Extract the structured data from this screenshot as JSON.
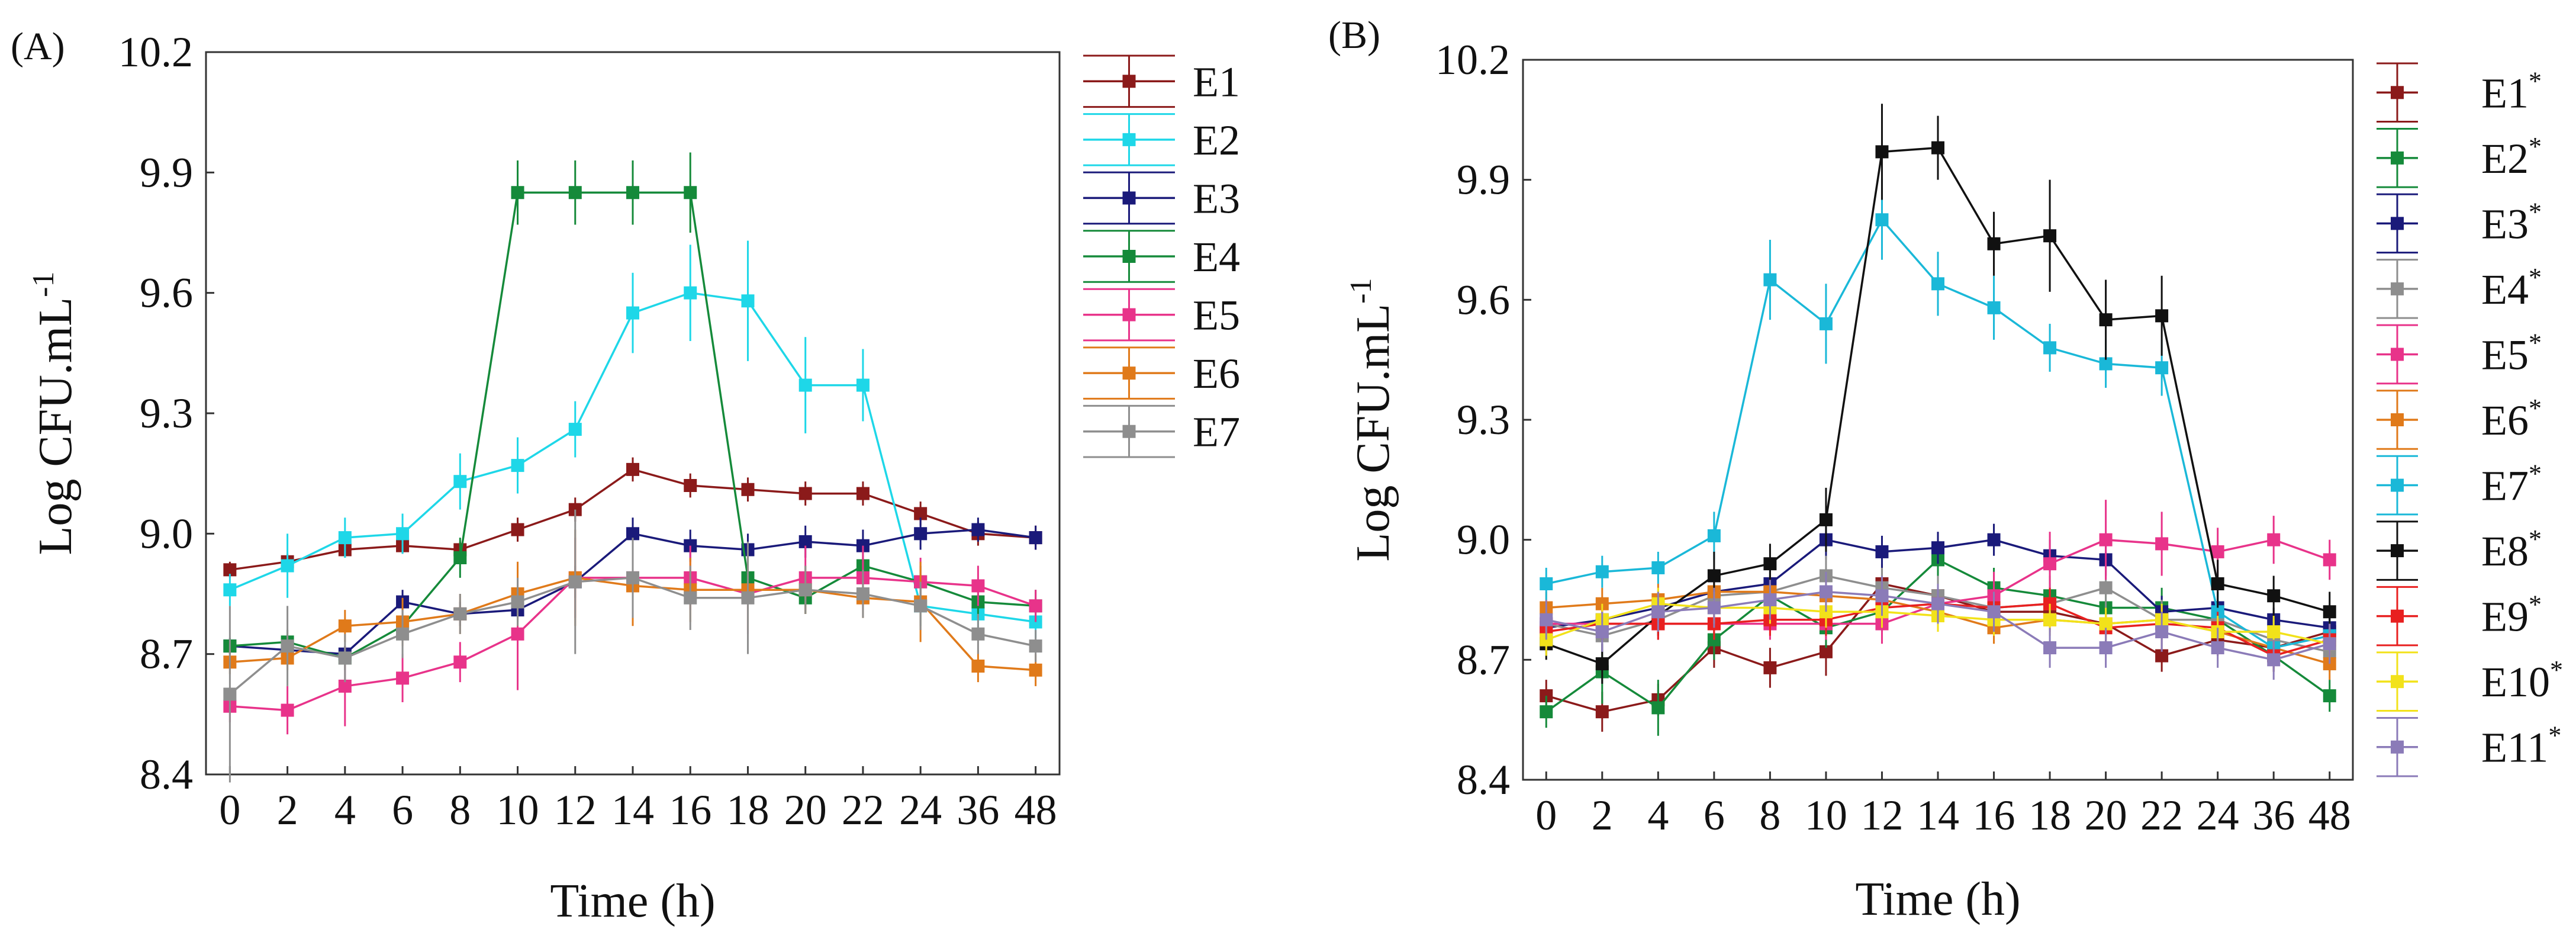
{
  "chart_data": [
    {
      "panel_label": "(A)",
      "type": "line",
      "xlabel": "Time (h)",
      "ylabel_main": "Log CFU.mL",
      "ylabel_sup": "-1",
      "ylim": [
        8.4,
        10.2
      ],
      "yticks": [
        "8.4",
        "8.7",
        "9.0",
        "9.3",
        "9.6",
        "9.9",
        "10.2"
      ],
      "categories": [
        "0",
        "2",
        "4",
        "6",
        "8",
        "10",
        "12",
        "14",
        "16",
        "18",
        "20",
        "22",
        "24",
        "36",
        "48"
      ],
      "legend_position": "right",
      "series": [
        {
          "name": "E1",
          "color": "#8B1A1A",
          "values": [
            8.91,
            8.93,
            8.96,
            8.97,
            8.96,
            9.01,
            9.06,
            9.16,
            9.12,
            9.11,
            9.1,
            9.1,
            9.05,
            9.0,
            8.99
          ],
          "err": [
            0.02,
            0.02,
            0.02,
            0.02,
            0.02,
            0.03,
            0.03,
            0.03,
            0.03,
            0.03,
            0.03,
            0.03,
            0.03,
            0.03,
            0.03
          ]
        },
        {
          "name": "E2",
          "color": "#1ED7E8",
          "values": [
            8.86,
            8.92,
            8.99,
            9.0,
            9.13,
            9.17,
            9.26,
            9.55,
            9.6,
            9.58,
            9.37,
            9.37,
            8.82,
            8.8,
            8.78
          ],
          "err": [
            0.04,
            0.08,
            0.05,
            0.05,
            0.07,
            0.07,
            0.07,
            0.1,
            0.12,
            0.15,
            0.12,
            0.09,
            0.05,
            0.04,
            0.04
          ]
        },
        {
          "name": "E3",
          "color": "#1A1A7A",
          "values": [
            8.72,
            8.71,
            8.7,
            8.83,
            8.8,
            8.81,
            8.88,
            9.0,
            8.97,
            8.96,
            8.98,
            8.97,
            9.0,
            9.01,
            8.99
          ],
          "err": [
            0.02,
            0.02,
            0.02,
            0.03,
            0.03,
            0.03,
            0.04,
            0.04,
            0.04,
            0.04,
            0.04,
            0.04,
            0.04,
            0.03,
            0.03
          ]
        },
        {
          "name": "E4",
          "color": "#158A3A",
          "values": [
            8.72,
            8.73,
            8.69,
            8.77,
            8.94,
            9.85,
            9.85,
            9.85,
            9.85,
            8.89,
            8.84,
            8.92,
            8.88,
            8.83,
            8.82
          ],
          "err": [
            0.02,
            0.03,
            0.03,
            0.03,
            0.05,
            0.08,
            0.08,
            0.08,
            0.1,
            0.05,
            0.04,
            0.04,
            0.04,
            0.04,
            0.04
          ]
        },
        {
          "name": "E5",
          "color": "#E8338A",
          "values": [
            8.57,
            8.56,
            8.62,
            8.64,
            8.68,
            8.75,
            8.89,
            8.89,
            8.89,
            8.85,
            8.89,
            8.89,
            8.88,
            8.87,
            8.82
          ],
          "err": [
            0.04,
            0.06,
            0.1,
            0.06,
            0.05,
            0.14,
            0.1,
            0.08,
            0.08,
            0.1,
            0.08,
            0.08,
            0.06,
            0.05,
            0.04
          ]
        },
        {
          "name": "E6",
          "color": "#E07A1A",
          "values": [
            8.68,
            8.69,
            8.77,
            8.78,
            8.8,
            8.85,
            8.89,
            8.87,
            8.86,
            8.86,
            8.86,
            8.84,
            8.83,
            8.67,
            8.66
          ],
          "err": [
            0.03,
            0.03,
            0.04,
            0.06,
            0.05,
            0.08,
            0.12,
            0.1,
            0.08,
            0.1,
            0.06,
            0.05,
            0.1,
            0.04,
            0.04
          ]
        },
        {
          "name": "E7",
          "color": "#8E8E8E",
          "values": [
            8.6,
            8.72,
            8.69,
            8.75,
            8.8,
            8.83,
            8.88,
            8.89,
            8.84,
            8.84,
            8.86,
            8.85,
            8.82,
            8.75,
            8.72
          ],
          "err": [
            0.22,
            0.1,
            0.06,
            0.06,
            0.05,
            0.06,
            0.18,
            0.1,
            0.08,
            0.14,
            0.06,
            0.06,
            0.06,
            0.05,
            0.04
          ]
        }
      ]
    },
    {
      "panel_label": "(B)",
      "type": "line",
      "xlabel": "Time (h)",
      "ylabel_main": "Log CFU.mL",
      "ylabel_sup": "-1",
      "ylim": [
        8.4,
        10.2
      ],
      "yticks": [
        "8.4",
        "8.7",
        "9.0",
        "9.3",
        "9.6",
        "9.9",
        "10.2"
      ],
      "categories": [
        "0",
        "2",
        "4",
        "6",
        "8",
        "10",
        "12",
        "14",
        "16",
        "18",
        "20",
        "22",
        "24",
        "36",
        "48"
      ],
      "legend_position": "right",
      "series": [
        {
          "name": "E1",
          "sup": "*",
          "color": "#8B1A1A",
          "values": [
            8.61,
            8.57,
            8.6,
            8.73,
            8.68,
            8.72,
            8.89,
            8.86,
            8.82,
            8.82,
            8.79,
            8.71,
            8.75,
            8.73,
            8.77
          ],
          "err": [
            0.04,
            0.05,
            0.04,
            0.05,
            0.05,
            0.06,
            0.05,
            0.05,
            0.05,
            0.05,
            0.05,
            0.04,
            0.04,
            0.04,
            0.04
          ]
        },
        {
          "name": "E2",
          "sup": "*",
          "color": "#158A3A",
          "values": [
            8.57,
            8.67,
            8.58,
            8.75,
            8.86,
            8.78,
            8.82,
            8.95,
            8.88,
            8.86,
            8.83,
            8.83,
            8.8,
            8.71,
            8.61
          ],
          "err": [
            0.04,
            0.08,
            0.07,
            0.05,
            0.05,
            0.05,
            0.05,
            0.06,
            0.05,
            0.05,
            0.05,
            0.05,
            0.04,
            0.04,
            0.04
          ]
        },
        {
          "name": "E3",
          "sup": "*",
          "color": "#1A1A7A",
          "values": [
            8.78,
            8.8,
            8.83,
            8.87,
            8.89,
            9.0,
            8.97,
            8.98,
            9.0,
            8.96,
            8.95,
            8.82,
            8.83,
            8.8,
            8.78
          ],
          "err": [
            0.03,
            0.03,
            0.03,
            0.04,
            0.04,
            0.05,
            0.04,
            0.04,
            0.04,
            0.04,
            0.04,
            0.04,
            0.04,
            0.03,
            0.03
          ]
        },
        {
          "name": "E4",
          "sup": "*",
          "color": "#8E8E8E",
          "values": [
            8.79,
            8.76,
            8.8,
            8.86,
            8.87,
            8.91,
            8.88,
            8.86,
            8.83,
            8.84,
            8.88,
            8.8,
            8.8,
            8.75,
            8.72
          ],
          "err": [
            0.05,
            0.05,
            0.05,
            0.05,
            0.05,
            0.05,
            0.05,
            0.05,
            0.05,
            0.05,
            0.05,
            0.05,
            0.05,
            0.05,
            0.05
          ]
        },
        {
          "name": "E5",
          "sup": "*",
          "color": "#E8338A",
          "values": [
            8.79,
            8.79,
            8.79,
            8.79,
            8.79,
            8.79,
            8.79,
            8.84,
            8.86,
            8.94,
            9.0,
            8.99,
            8.97,
            9.0,
            8.95
          ],
          "err": [
            0.04,
            0.04,
            0.04,
            0.04,
            0.04,
            0.04,
            0.05,
            0.05,
            0.06,
            0.08,
            0.1,
            0.08,
            0.06,
            0.06,
            0.05
          ]
        },
        {
          "name": "E6",
          "sup": "*",
          "color": "#E07A1A",
          "values": [
            8.83,
            8.84,
            8.85,
            8.87,
            8.87,
            8.86,
            8.85,
            8.82,
            8.78,
            8.8,
            8.79,
            8.8,
            8.77,
            8.73,
            8.69
          ],
          "err": [
            0.04,
            0.04,
            0.04,
            0.04,
            0.04,
            0.04,
            0.04,
            0.04,
            0.04,
            0.04,
            0.04,
            0.04,
            0.04,
            0.04,
            0.04
          ]
        },
        {
          "name": "E7",
          "sup": "*",
          "color": "#1AB8D8",
          "values": [
            8.89,
            8.92,
            8.93,
            9.01,
            9.65,
            9.54,
            9.8,
            9.64,
            9.58,
            9.48,
            9.44,
            9.43,
            8.82,
            8.73,
            8.76
          ],
          "err": [
            0.04,
            0.04,
            0.04,
            0.06,
            0.1,
            0.1,
            0.1,
            0.08,
            0.08,
            0.06,
            0.06,
            0.07,
            0.05,
            0.04,
            0.04
          ]
        },
        {
          "name": "E8",
          "sup": "*",
          "color": "#111111",
          "values": [
            8.74,
            8.69,
            8.81,
            8.91,
            8.94,
            9.05,
            9.97,
            9.98,
            9.74,
            9.76,
            9.55,
            9.56,
            8.89,
            8.86,
            8.82
          ],
          "err": [
            0.04,
            0.05,
            0.05,
            0.06,
            0.05,
            0.08,
            0.12,
            0.08,
            0.08,
            0.14,
            0.1,
            0.1,
            0.06,
            0.05,
            0.05
          ]
        },
        {
          "name": "E9",
          "sup": "*",
          "color": "#E82020",
          "values": [
            8.77,
            8.79,
            8.79,
            8.79,
            8.8,
            8.8,
            8.83,
            8.84,
            8.83,
            8.84,
            8.78,
            8.79,
            8.78,
            8.71,
            8.75
          ],
          "err": [
            0.04,
            0.04,
            0.04,
            0.04,
            0.04,
            0.04,
            0.04,
            0.04,
            0.04,
            0.04,
            0.04,
            0.04,
            0.04,
            0.04,
            0.04
          ]
        },
        {
          "name": "E10",
          "sup": "*",
          "color": "#F2E21A",
          "values": [
            8.75,
            8.8,
            8.84,
            8.83,
            8.83,
            8.82,
            8.82,
            8.81,
            8.8,
            8.8,
            8.79,
            8.8,
            8.77,
            8.77,
            8.74
          ],
          "err": [
            0.04,
            0.04,
            0.04,
            0.04,
            0.04,
            0.04,
            0.04,
            0.04,
            0.04,
            0.04,
            0.04,
            0.04,
            0.04,
            0.04,
            0.04
          ]
        },
        {
          "name": "E11",
          "sup": "*",
          "color": "#8B7BB8",
          "values": [
            8.8,
            8.77,
            8.82,
            8.83,
            8.85,
            8.87,
            8.86,
            8.84,
            8.82,
            8.73,
            8.73,
            8.77,
            8.73,
            8.7,
            8.74
          ],
          "err": [
            0.05,
            0.05,
            0.05,
            0.05,
            0.05,
            0.05,
            0.05,
            0.05,
            0.05,
            0.05,
            0.05,
            0.05,
            0.05,
            0.05,
            0.05
          ]
        }
      ]
    }
  ]
}
